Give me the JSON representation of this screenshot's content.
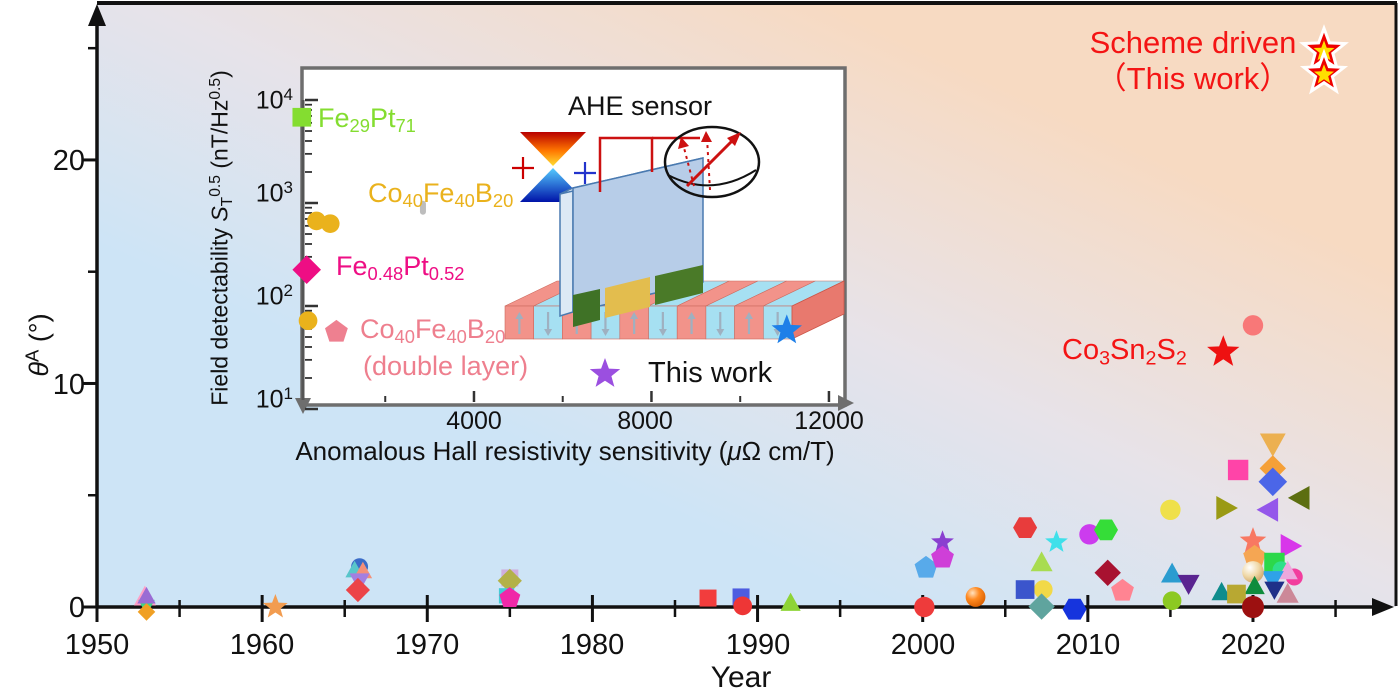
{
  "main": {
    "ylabel_rich": [
      [
        "θ",
        "i"
      ],
      [
        "A",
        "sup"
      ],
      [
        " (°)",
        ""
      ]
    ],
    "xlabel": "Year",
    "yticks": [
      "0",
      "10",
      "20"
    ],
    "xticks": [
      "1950",
      "1960",
      "1970",
      "1980",
      "1990",
      "2000",
      "2010",
      "2020"
    ],
    "annotation_scheme_line1": "Scheme driven",
    "annotation_scheme_line2": "（This work）",
    "annotation_co3sn2s2_rich": [
      [
        "Co",
        ""
      ],
      [
        "3",
        "sub"
      ],
      [
        "Sn",
        ""
      ],
      [
        "2",
        "sub"
      ],
      [
        "S",
        ""
      ],
      [
        "2",
        "sub"
      ]
    ],
    "accent_red": "#f41414"
  },
  "inset": {
    "title": "AHE sensor",
    "xlabel_rich": [
      [
        "Anomalous Hall resistivity sensitivity (",
        ""
      ],
      [
        "μ",
        "i"
      ],
      [
        "Ω cm/T)",
        ""
      ]
    ],
    "ylabel_rich": [
      [
        "Field detectability ",
        ""
      ],
      [
        "S",
        "i"
      ],
      [
        "T",
        "sub"
      ],
      [
        "0.5",
        "sup"
      ],
      [
        " (nT/Hz",
        ""
      ],
      [
        "0.5",
        "sup"
      ],
      [
        ")",
        ""
      ]
    ],
    "xticks": [
      "4000",
      "8000",
      "12000"
    ],
    "yticks_rich": [
      [
        [
          "10",
          ""
        ],
        [
          "4",
          "sup"
        ]
      ],
      [
        [
          "10",
          ""
        ],
        [
          "3",
          "sup"
        ]
      ],
      [
        [
          "10",
          ""
        ],
        [
          "2",
          "sup"
        ]
      ],
      [
        [
          "10",
          ""
        ],
        [
          "1",
          "sup"
        ]
      ]
    ],
    "labels": {
      "fe29pt71": {
        "rich": [
          [
            "Fe",
            ""
          ],
          [
            "29",
            "sub"
          ],
          [
            "Pt",
            ""
          ],
          [
            "71",
            "sub"
          ]
        ],
        "color": "#84dd30"
      },
      "co40fe40b20": {
        "rich": [
          [
            "Co",
            ""
          ],
          [
            "40",
            "sub"
          ],
          [
            "Fe",
            ""
          ],
          [
            "40",
            "sub"
          ],
          [
            "B",
            ""
          ],
          [
            "20",
            "sub"
          ]
        ],
        "color": "#eab21c"
      },
      "fe048pt052": {
        "rich": [
          [
            "Fe",
            ""
          ],
          [
            "0.48",
            "sub"
          ],
          [
            "Pt",
            ""
          ],
          [
            "0.52",
            "sub"
          ]
        ],
        "color": "#ee0e84"
      },
      "co40fe40b20_dl": {
        "rich": [
          [
            "Co",
            ""
          ],
          [
            "40",
            "sub"
          ],
          [
            "Fe",
            ""
          ],
          [
            "40",
            "sub"
          ],
          [
            "B",
            ""
          ],
          [
            "20",
            "sub"
          ]
        ],
        "line2": "(double layer)",
        "color": "#ee7f8e"
      }
    },
    "legend": {
      "label": "This work",
      "star_color": "#9b4fe0"
    }
  },
  "chart_data": [
    {
      "type": "scatter",
      "title": "Anomalous Hall angle of materials vs publication year",
      "xlabel": "Year",
      "ylabel": "thetaA (deg)",
      "xlim": [
        1948,
        2028
      ],
      "ylim": [
        -0.5,
        27.2
      ],
      "grid": false,
      "points": [
        {
          "year": 1952.9,
          "theta": 0.42,
          "shape": "triangle-up",
          "color": "#ffa0c8",
          "s": 12
        },
        {
          "year": 1953.0,
          "theta": 0.05,
          "shape": "triangle-down",
          "color": "#3fd684",
          "s": 9
        },
        {
          "year": 1953.0,
          "theta": -0.22,
          "shape": "diamond",
          "color": "#f0a024",
          "s": 8
        },
        {
          "year": 1953.0,
          "theta": 0.45,
          "shape": "triangle-up",
          "color": "#9a6cd4",
          "s": 10
        },
        {
          "year": 1960.8,
          "theta": 0.0,
          "shape": "star",
          "color": "#f29c50",
          "s": 13
        },
        {
          "year": 1965.9,
          "theta": 1.8,
          "shape": "circle",
          "color": "#3a6cc8",
          "s": 10
        },
        {
          "year": 1965.6,
          "theta": 1.62,
          "shape": "triangle-up",
          "color": "#58c6ca",
          "s": 10
        },
        {
          "year": 1966.1,
          "theta": 1.58,
          "shape": "triangle-up",
          "color": "#f48f78",
          "s": 10
        },
        {
          "year": 1965.9,
          "theta": 1.18,
          "shape": "triangle-down",
          "color": "#a37fe0",
          "s": 11
        },
        {
          "year": 1965.8,
          "theta": 0.76,
          "shape": "diamond",
          "color": "#ec4448",
          "s": 11
        },
        {
          "year": 1975.0,
          "theta": 1.3,
          "shape": "square",
          "color": "#cfaede",
          "s": 10
        },
        {
          "year": 1975.0,
          "theta": 1.17,
          "shape": "diamond",
          "color": "#b3b148",
          "s": 11
        },
        {
          "year": 1974.8,
          "theta": 0.5,
          "shape": "square",
          "color": "#42ccd6",
          "s": 9
        },
        {
          "year": 1975.0,
          "theta": 0.4,
          "shape": "pentagon",
          "color": "#f028a8",
          "s": 11
        },
        {
          "year": 1987.0,
          "theta": 0.4,
          "shape": "square",
          "color": "#f23d3d",
          "s": 10
        },
        {
          "year": 1989.0,
          "theta": 0.45,
          "shape": "square",
          "color": "#4d5ce0",
          "s": 10
        },
        {
          "year": 1989.1,
          "theta": 0.05,
          "shape": "circle",
          "color": "#ee3636",
          "s": 11
        },
        {
          "year": 1992.0,
          "theta": 0.15,
          "shape": "triangle-up",
          "color": "#8ed437",
          "s": 11
        },
        {
          "year": 2000.1,
          "theta": 0.0,
          "shape": "circle",
          "color": "#ee3b3b",
          "s": 12
        },
        {
          "year": 2000.2,
          "theta": 1.75,
          "shape": "pentagon",
          "color": "#58aaea",
          "s": 12
        },
        {
          "year": 2001.2,
          "theta": 2.9,
          "shape": "star",
          "color": "#8a3fd0",
          "s": 12
        },
        {
          "year": 2001.2,
          "theta": 2.2,
          "shape": "pentagon",
          "color": "#cf3fd8",
          "s": 12
        },
        {
          "year": 2003.2,
          "theta": 0.45,
          "shape": "sphere-orange",
          "color": "#ff7b1a",
          "s": 11
        },
        {
          "year": 2006.2,
          "theta": 3.55,
          "shape": "hexagon",
          "color": "#e83c3c",
          "s": 12
        },
        {
          "year": 2008.1,
          "theta": 2.9,
          "shape": "star",
          "color": "#3fe0ea",
          "s": 12
        },
        {
          "year": 2007.2,
          "theta": 1.95,
          "shape": "triangle-up",
          "color": "#a8dc50",
          "s": 12
        },
        {
          "year": 2007.3,
          "theta": 0.78,
          "shape": "circle",
          "color": "#f2d948",
          "s": 11
        },
        {
          "year": 2006.2,
          "theta": 0.78,
          "shape": "square",
          "color": "#3b55cc",
          "s": 11
        },
        {
          "year": 2007.2,
          "theta": 0.02,
          "shape": "diamond",
          "color": "#5fa49e",
          "s": 12
        },
        {
          "year": 2009.2,
          "theta": -0.1,
          "shape": "hexagon",
          "color": "#1634dd",
          "s": 12
        },
        {
          "year": 2010.1,
          "theta": 3.25,
          "shape": "circle",
          "color": "#cc3cee",
          "s": 12
        },
        {
          "year": 2011.1,
          "theta": 3.45,
          "shape": "hexagon",
          "color": "#35dd38",
          "s": 12
        },
        {
          "year": 2011.2,
          "theta": 1.53,
          "shape": "diamond",
          "color": "#a81230",
          "s": 12
        },
        {
          "year": 2012.1,
          "theta": 0.72,
          "shape": "pentagon",
          "color": "#ff8492",
          "s": 12
        },
        {
          "year": 2015.0,
          "theta": 4.35,
          "shape": "circle",
          "color": "#efe04a",
          "s": 12
        },
        {
          "year": 2015.1,
          "theta": 1.45,
          "shape": "triangle-up",
          "color": "#2b9cd0",
          "s": 12
        },
        {
          "year": 2016.1,
          "theta": 1.08,
          "shape": "triangle-down",
          "color": "#5a2490",
          "s": 12
        },
        {
          "year": 2015.1,
          "theta": 0.28,
          "shape": "circle",
          "color": "#8cc922",
          "s": 11
        },
        {
          "year": 2018.3,
          "theta": 4.43,
          "shape": "triangle-right",
          "color": "#9a9a14",
          "s": 13
        },
        {
          "year": 2019.1,
          "theta": 6.13,
          "shape": "square",
          "color": "#ff44a8",
          "s": 12
        },
        {
          "year": 2021.2,
          "theta": 7.35,
          "shape": "triangle-down",
          "color": "#ecb050",
          "s": 14
        },
        {
          "year": 2021.2,
          "theta": 6.2,
          "shape": "diamond",
          "color": "#f5a038",
          "s": 12
        },
        {
          "year": 2021.2,
          "theta": 5.6,
          "shape": "diamond",
          "color": "#4b66e8",
          "s": 13
        },
        {
          "year": 2022.9,
          "theta": 4.88,
          "shape": "triangle-left",
          "color": "#5c6e10",
          "s": 13
        },
        {
          "year": 2021.0,
          "theta": 4.35,
          "shape": "triangle-left",
          "color": "#9457ea",
          "s": 13
        },
        {
          "year": 2020.0,
          "theta": 2.95,
          "shape": "star",
          "color": "#f87862",
          "s": 14
        },
        {
          "year": 2022.2,
          "theta": 2.73,
          "shape": "triangle-right",
          "color": "#d836ea",
          "s": 13
        },
        {
          "year": 2020.1,
          "theta": 2.24,
          "shape": "pentagon",
          "color": "#f5a653",
          "s": 12
        },
        {
          "year": 2021.3,
          "theta": 1.97,
          "shape": "square",
          "color": "#2cd84a",
          "s": 12
        },
        {
          "year": 2021.7,
          "theta": 1.66,
          "shape": "circle",
          "color": "#2fe08a",
          "s": 10
        },
        {
          "year": 2022.5,
          "theta": 1.34,
          "shape": "circle",
          "color": "#f23d9e",
          "s": 10
        },
        {
          "year": 2022.1,
          "theta": 1.57,
          "shape": "triangle-up",
          "color": "#eda8dd",
          "s": 11
        },
        {
          "year": 2021.2,
          "theta": 1.25,
          "shape": "triangle-down",
          "color": "#2fa2e8",
          "s": 12
        },
        {
          "year": 2020.0,
          "theta": 1.57,
          "shape": "sphere-cream",
          "color": "#f0dcae",
          "s": 12
        },
        {
          "year": 2021.3,
          "theta": 0.81,
          "shape": "triangle-down",
          "color": "#1f3088",
          "s": 11
        },
        {
          "year": 2020.1,
          "theta": 0.9,
          "shape": "triangle-up",
          "color": "#0f8c3c",
          "s": 11
        },
        {
          "year": 2018.1,
          "theta": 0.63,
          "shape": "triangle-up",
          "color": "#0f8c8c",
          "s": 11
        },
        {
          "year": 2019.0,
          "theta": 0.58,
          "shape": "square",
          "color": "#b8a832",
          "s": 11
        },
        {
          "year": 2022.1,
          "theta": 0.54,
          "shape": "triangle-up",
          "color": "#cc8898",
          "s": 12
        },
        {
          "year": 2020.0,
          "theta": 0.0,
          "shape": "circle",
          "color": "#9c1010",
          "s": 13
        },
        {
          "year": 2018.2,
          "theta": 11.4,
          "shape": "star",
          "color": "#ee1111",
          "s": 17
        },
        {
          "year": 2020.0,
          "theta": 12.6,
          "shape": "circle",
          "color": "#f87878",
          "s": 12
        },
        {
          "year": 2024.3,
          "theta": 24.9,
          "shape": "star-badge",
          "color": "#ee0000",
          "s": 22
        },
        {
          "year": 2024.3,
          "theta": 23.85,
          "shape": "star-badge",
          "color": "#ee0000",
          "s": 21
        }
      ]
    },
    {
      "type": "scatter",
      "title": "Field detectability vs anomalous Hall resistivity sensitivity (inset)",
      "xlabel": "Anomalous Hall resistivity sensitivity (uOhm cm/T)",
      "ylabel": "Field detectability ST^0.5 (nT/Hz^0.5)",
      "xlim": [
        0,
        12400
      ],
      "ylim": [
        10,
        10000
      ],
      "yscale": "log",
      "points": [
        {
          "sens": 120,
          "detect": 6800,
          "shape": "square",
          "color": "#84dd30",
          "s": 11,
          "label": "Fe29Pt71"
        },
        {
          "sens": 450,
          "detect": 670,
          "shape": "circle",
          "color": "#eab21c",
          "s": 11,
          "label": "Co40Fe40B20"
        },
        {
          "sens": 760,
          "detect": 630,
          "shape": "circle",
          "color": "#eab21c",
          "s": 11,
          "label": "Co40Fe40B20"
        },
        {
          "sens": 2850,
          "detect": 900,
          "shape": "gray-dot",
          "color": "#bdbdbd",
          "s": 5,
          "label": ""
        },
        {
          "sens": 230,
          "detect": 225,
          "shape": "diamond",
          "color": "#ee0e84",
          "s": 13,
          "label": "Fe0.48Pt0.52"
        },
        {
          "sens": 260,
          "detect": 72,
          "shape": "circle",
          "color": "#eab21c",
          "s": 11,
          "label": "Co40Fe40B20 double layer"
        },
        {
          "sens": 900,
          "detect": 56,
          "shape": "pentagon",
          "color": "#ee8090",
          "s": 12,
          "label": "Co40Fe40B20 double layer"
        },
        {
          "sens": 11050,
          "detect": 58,
          "shape": "star",
          "color": "#1e7fe8",
          "s": 16,
          "label": "This work"
        }
      ]
    }
  ]
}
